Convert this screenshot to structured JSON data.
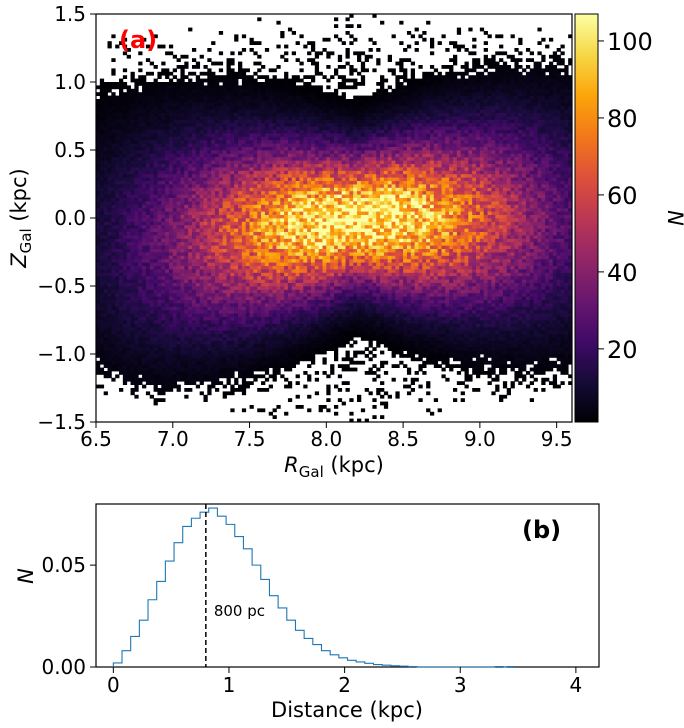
{
  "chart_data": [
    {
      "type": "heatmap",
      "panel_label": "(a)",
      "xlabel_var": "R",
      "xlabel_sub": "Gal",
      "xlabel_unit": " (kpc)",
      "ylabel_var": "Z",
      "ylabel_sub": "Gal",
      "ylabel_unit": " (kpc)",
      "xlim": [
        6.5,
        9.6
      ],
      "ylim": [
        -1.5,
        1.5
      ],
      "xticks": [
        "6.5",
        "7.0",
        "7.5",
        "8.0",
        "8.5",
        "9.0",
        "9.5"
      ],
      "xtick_values": [
        6.5,
        7.0,
        7.5,
        8.0,
        8.5,
        9.0,
        9.5
      ],
      "yticks": [
        "−1.5",
        "−1.0",
        "−0.5",
        "0.0",
        "0.5",
        "1.0",
        "1.5"
      ],
      "ytick_values": [
        -1.5,
        -1.0,
        -0.5,
        0.0,
        0.5,
        1.0,
        1.5
      ],
      "colormap": "inferno",
      "colorbar_label": "N",
      "colorbar_range": [
        1,
        107
      ],
      "colorbar_ticks": [
        "20",
        "40",
        "60",
        "80",
        "100"
      ],
      "colorbar_tick_values": [
        20,
        40,
        60,
        80,
        100
      ],
      "density_peak": {
        "R": 8.2,
        "Z": 0.05,
        "N": 107
      },
      "bins": {
        "R_step": 0.025,
        "Z_step": 0.025
      }
    },
    {
      "type": "line",
      "style": "step",
      "panel_label": "(b)",
      "xlabel": "Distance (kpc)",
      "ylabel": "N",
      "xlim": [
        -0.15,
        4.2
      ],
      "ylim": [
        0,
        0.08
      ],
      "xticks": [
        "0",
        "1",
        "2",
        "3",
        "4"
      ],
      "xtick_values": [
        0,
        1,
        2,
        3,
        4
      ],
      "yticks": [
        "0.00",
        "0.05"
      ],
      "ytick_values": [
        0.0,
        0.05
      ],
      "bin_width": 0.075,
      "x": [
        0.0,
        0.075,
        0.15,
        0.225,
        0.3,
        0.375,
        0.45,
        0.525,
        0.6,
        0.675,
        0.75,
        0.825,
        0.9,
        0.975,
        1.05,
        1.125,
        1.2,
        1.275,
        1.35,
        1.425,
        1.5,
        1.575,
        1.65,
        1.725,
        1.8,
        1.875,
        1.95,
        2.025,
        2.1,
        2.175,
        2.25,
        2.325,
        2.4,
        2.475,
        2.55,
        3.3,
        3.4
      ],
      "values": [
        0.002,
        0.008,
        0.015,
        0.023,
        0.033,
        0.042,
        0.052,
        0.061,
        0.069,
        0.073,
        0.076,
        0.078,
        0.074,
        0.07,
        0.064,
        0.058,
        0.05,
        0.043,
        0.035,
        0.029,
        0.023,
        0.018,
        0.014,
        0.011,
        0.008,
        0.006,
        0.0045,
        0.0033,
        0.0025,
        0.0018,
        0.0012,
        0.0009,
        0.0006,
        0.0004,
        0.0002,
        0.0002,
        0.0002
      ],
      "color": "#1f77b4",
      "vline_x": 0.8,
      "vline_label": "800 pc"
    }
  ]
}
